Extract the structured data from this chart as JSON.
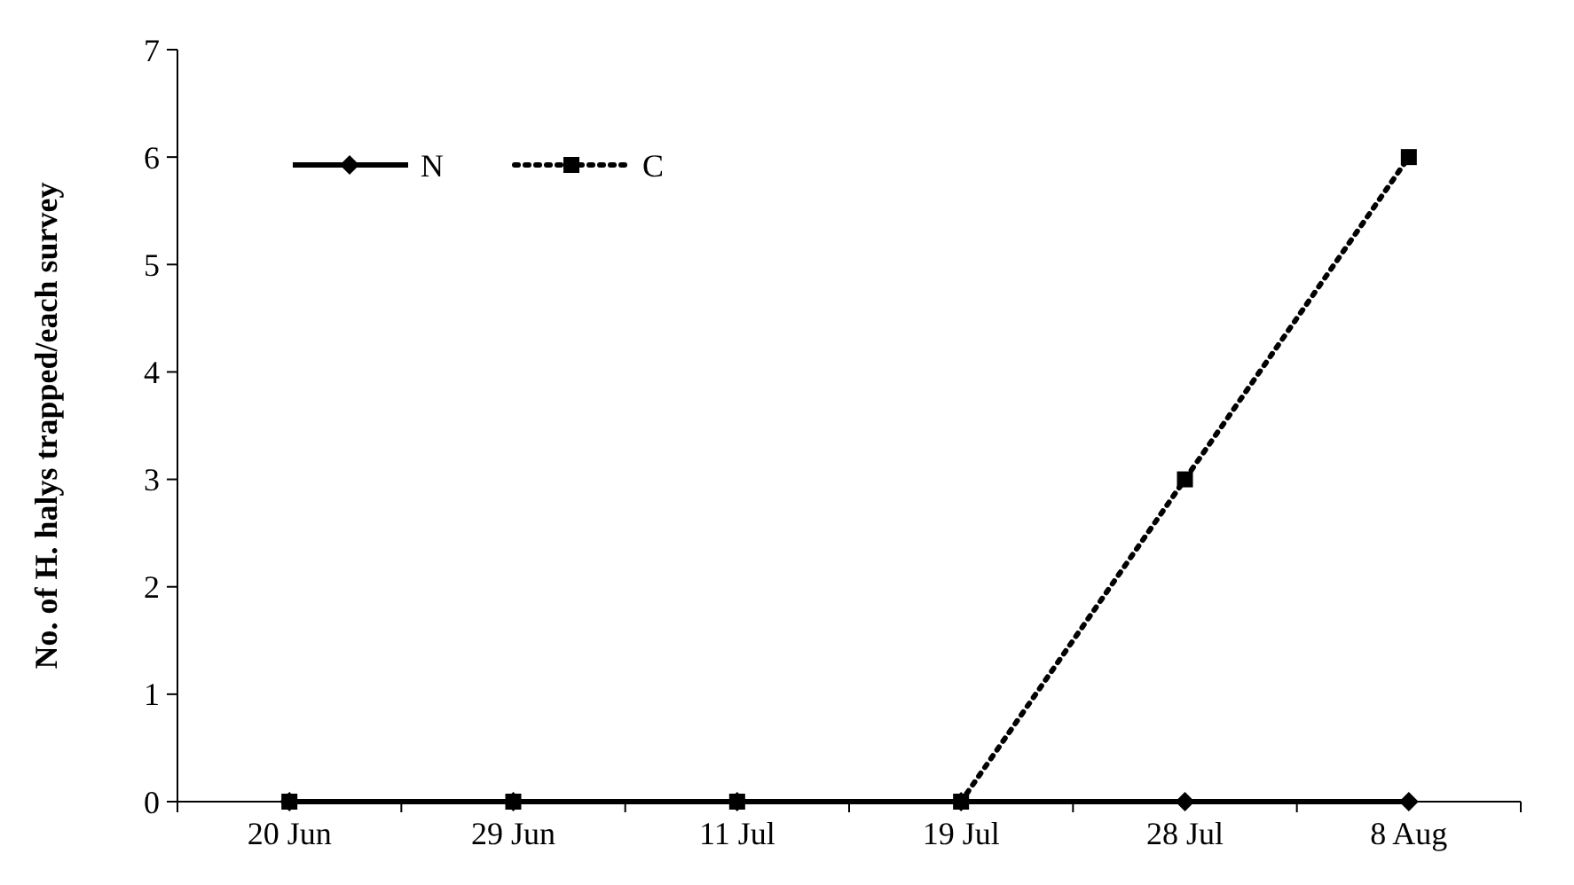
{
  "chart_data": {
    "type": "line",
    "ylabel": "No. of H. halys trapped/each survey",
    "categories": [
      "20 Jun",
      "29 Jun",
      "11 Jul",
      "19 Jul",
      "28 Jul",
      "8 Aug"
    ],
    "series": [
      {
        "name": "N",
        "color": "#000000",
        "values": [
          0,
          0,
          0,
          0,
          0,
          0
        ],
        "marker": "diamond",
        "line_style": "solid"
      },
      {
        "name": "C",
        "color": "#000000",
        "values": [
          0,
          0,
          0,
          0,
          3,
          6
        ],
        "marker": "square",
        "line_style": "dotted"
      }
    ],
    "ylim": [
      0,
      7
    ],
    "yticks": [
      0,
      1,
      2,
      3,
      4,
      5,
      6,
      7
    ],
    "grid": false,
    "legend": "top left"
  }
}
